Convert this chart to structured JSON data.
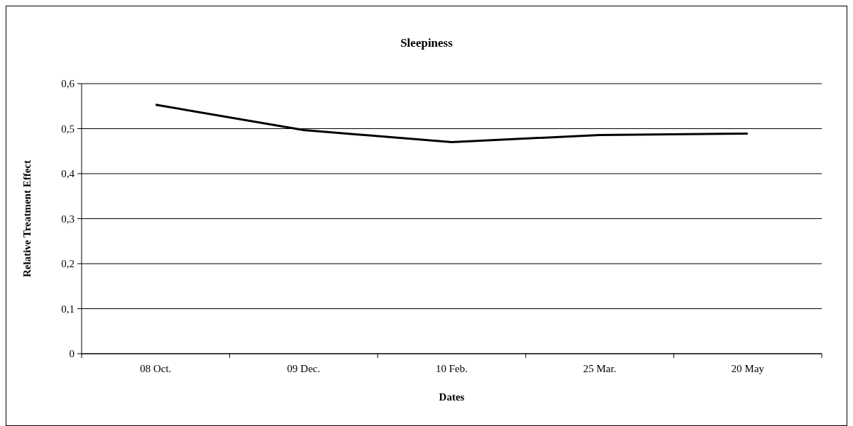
{
  "chart_data": {
    "type": "line",
    "title": "Sleepiness",
    "xlabel": "Dates",
    "ylabel": "Relative Treatment Effect",
    "categories": [
      "08 Oct.",
      "09 Dec.",
      "10 Feb.",
      "25 Mar.",
      "20 May"
    ],
    "series": [
      {
        "color": "#000000",
        "values": [
          0.553,
          0.497,
          0.47,
          0.486,
          0.489
        ]
      }
    ],
    "ylim": [
      0,
      0.6
    ],
    "yticks": [
      0,
      {
        "value": 0.1,
        "label": "0,1"
      },
      {
        "value": 0.2,
        "label": "0,2"
      },
      {
        "value": 0.3,
        "label": "0,3"
      },
      {
        "value": 0.4,
        "label": "0,4"
      },
      {
        "value": 0.5,
        "label": "0,5"
      },
      {
        "value": 0.6,
        "label": "0,6"
      }
    ],
    "grid": "y",
    "marker": "none",
    "line_style": "solid"
  }
}
